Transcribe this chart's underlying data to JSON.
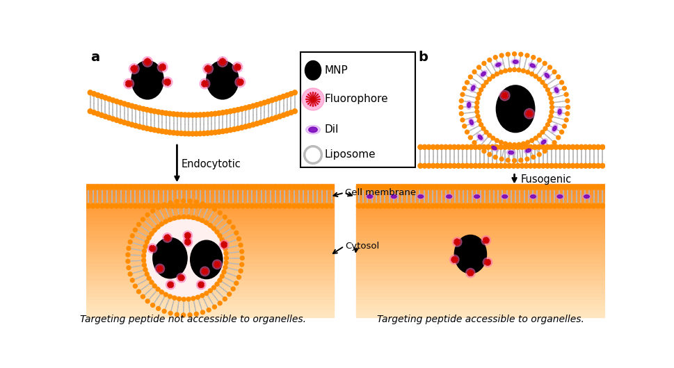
{
  "label_a": "a",
  "label_b": "b",
  "text_endocytotic": "Endocytotic",
  "text_fusogenic": "Fusogenic",
  "text_cell_membrane": "Cell membrane",
  "text_cytosol": "Cytosol",
  "text_bottom_left": "Targeting peptide not accessible to organelles.",
  "text_bottom_right": "Targeting peptide accessible to organelles.",
  "legend_items": [
    "MNP",
    "Fluorophore",
    "DiI",
    "Liposome"
  ],
  "color_mnp": "#000000",
  "color_fluorophore_center": "#cc0000",
  "color_fluorophore_glow": "#ff69b4",
  "color_dil_center": "#7700bb",
  "color_dil_glow": "#cc88ee",
  "color_head": "#FF8C00",
  "color_tail": "#B8B8B8",
  "bg_color": "#ffffff",
  "cytosol_orange": "#FF9020",
  "cytosol_pink": "#FFCCAA",
  "cytosol_light": "#FFE8D0",
  "endosome_inner": "#FFF0F0"
}
